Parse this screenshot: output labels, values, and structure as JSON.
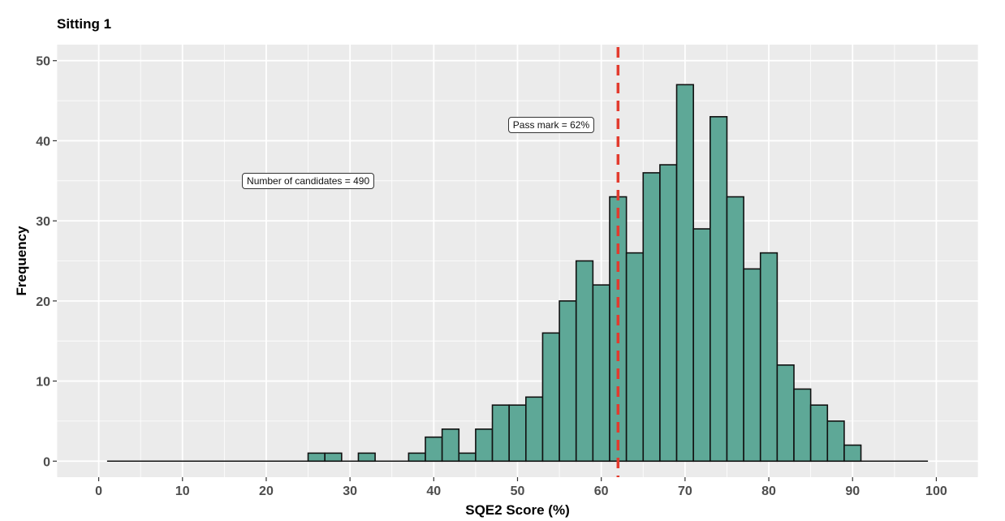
{
  "chart_data": {
    "type": "bar",
    "title": "Sitting 1",
    "xlabel": "SQE2 Score (%)",
    "ylabel": "Frequency",
    "xlim": [
      -5,
      105
    ],
    "ylim": [
      -2,
      52
    ],
    "bin_width": 2,
    "x_ticks": [
      0,
      10,
      20,
      30,
      40,
      50,
      60,
      70,
      80,
      90,
      100
    ],
    "y_ticks": [
      0,
      10,
      20,
      30,
      40,
      50
    ],
    "bins": [
      {
        "x": 26,
        "count": 1
      },
      {
        "x": 28,
        "count": 1
      },
      {
        "x": 32,
        "count": 1
      },
      {
        "x": 38,
        "count": 1
      },
      {
        "x": 40,
        "count": 3
      },
      {
        "x": 42,
        "count": 4
      },
      {
        "x": 44,
        "count": 1
      },
      {
        "x": 46,
        "count": 4
      },
      {
        "x": 48,
        "count": 7
      },
      {
        "x": 50,
        "count": 7
      },
      {
        "x": 52,
        "count": 8
      },
      {
        "x": 54,
        "count": 16
      },
      {
        "x": 56,
        "count": 20
      },
      {
        "x": 58,
        "count": 25
      },
      {
        "x": 60,
        "count": 22
      },
      {
        "x": 62,
        "count": 33
      },
      {
        "x": 64,
        "count": 26
      },
      {
        "x": 66,
        "count": 36
      },
      {
        "x": 68,
        "count": 37
      },
      {
        "x": 70,
        "count": 47
      },
      {
        "x": 72,
        "count": 29
      },
      {
        "x": 74,
        "count": 43
      },
      {
        "x": 76,
        "count": 33
      },
      {
        "x": 78,
        "count": 24
      },
      {
        "x": 80,
        "count": 26
      },
      {
        "x": 82,
        "count": 12
      },
      {
        "x": 84,
        "count": 9
      },
      {
        "x": 86,
        "count": 7
      },
      {
        "x": 88,
        "count": 5
      },
      {
        "x": 90,
        "count": 2
      }
    ],
    "baseline_range": [
      1,
      99
    ],
    "pass_mark": 62,
    "annotations": {
      "candidates": "Number of candidates = 490",
      "pass_mark": "Pass mark = 62%"
    },
    "colors": {
      "bar_fill": "#5ea897",
      "bar_stroke": "#111111",
      "panel": "#ebebeb",
      "grid": "#ffffff",
      "pass_line": "#e23b2e"
    },
    "grid": true,
    "legend": "none"
  }
}
